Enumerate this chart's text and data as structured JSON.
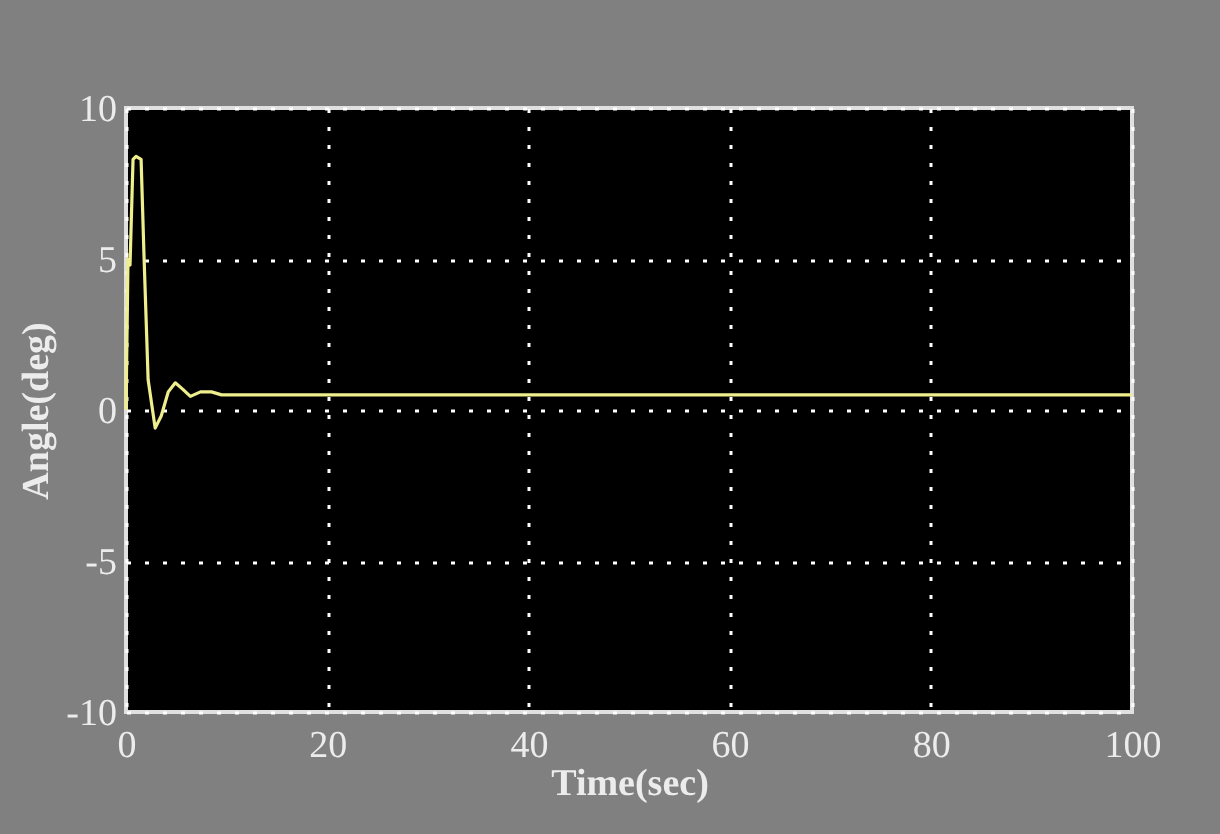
{
  "chart_data": {
    "type": "line",
    "xlabel": "Time(sec)",
    "ylabel": "Angle(deg)",
    "x": [
      0,
      0.2,
      0.4,
      0.7,
      1.0,
      1.5,
      1.8,
      2.2,
      2.9,
      3.5,
      4.2,
      4.9,
      5.6,
      6.4,
      7.4,
      8.5,
      9.5,
      100
    ],
    "series": [
      {
        "color": "#eeee8c",
        "values": [
          0,
          5,
          4.8,
          8.3,
          8.4,
          8.3,
          5,
          1,
          -0.6,
          -0.2,
          0.6,
          0.9,
          0.7,
          0.45,
          0.6,
          0.6,
          0.5,
          0.5
        ]
      }
    ],
    "xlim": [
      0,
      100
    ],
    "ylim": [
      -10,
      10
    ],
    "xticks": [
      0,
      20,
      40,
      60,
      80,
      100
    ],
    "yticks": [
      -10,
      -5,
      0,
      5,
      10
    ],
    "grid": true,
    "line_style": "solid"
  }
}
